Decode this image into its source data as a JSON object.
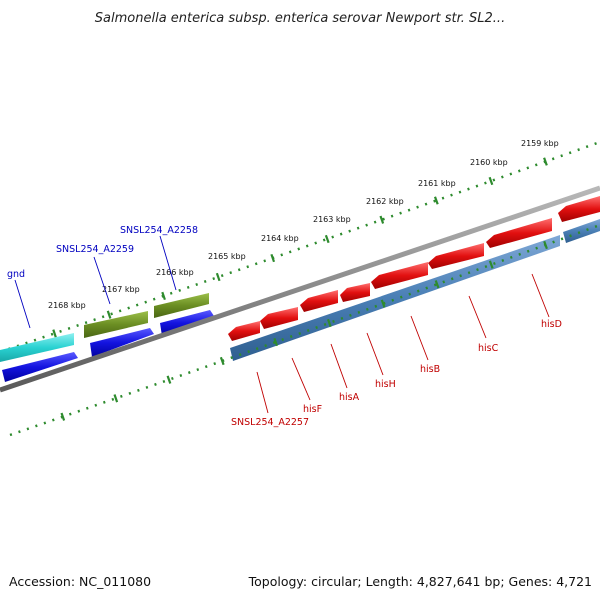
{
  "title": "Salmonella enterica subsp. enterica serovar Newport str. SL2...",
  "accession": "Accession: NC_011080",
  "topology": "Topology: circular; Length: 4,827,641 bp; Genes: 4,721",
  "scale_labels": [
    "2168 kbp",
    "2167 kbp",
    "2166 kbp",
    "2165 kbp",
    "2164 kbp",
    "2163 kbp",
    "2162 kbp",
    "2161 kbp",
    "2160 kbp",
    "2159 kbp"
  ],
  "genes_above": [
    "gnd",
    "SNSL254_A2259",
    "SNSL254_A2258"
  ],
  "genes_below": [
    "SNSL254_A2257",
    "hisF",
    "hisA",
    "hisH",
    "hisB",
    "hisC",
    "hisD"
  ],
  "colors": {
    "backbone": "#8a8a8a",
    "tick": "#2e8b2e",
    "cyan_gene": "#2ad2d2",
    "blue_gene": "#1414e0",
    "olive_gene": "#6b8e23",
    "red_gene": "#e01010",
    "steel_band": "#4a7fb5",
    "label_blue": "#0000c0",
    "label_red": "#c00000"
  }
}
